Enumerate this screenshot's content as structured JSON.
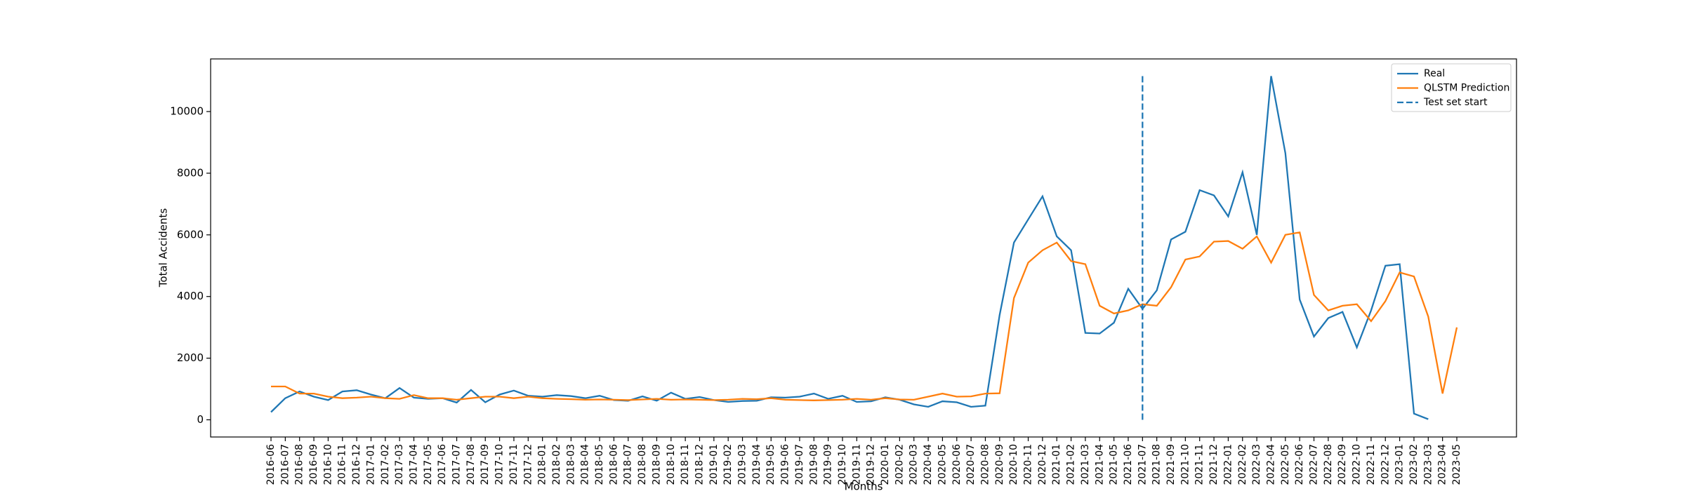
{
  "chart_data": {
    "type": "line",
    "x_label": "Months",
    "y_label": "Total Accidents",
    "categories": [
      "2016-06",
      "2016-07",
      "2016-08",
      "2016-09",
      "2016-10",
      "2016-11",
      "2016-12",
      "2017-01",
      "2017-02",
      "2017-03",
      "2017-04",
      "2017-05",
      "2017-06",
      "2017-07",
      "2017-08",
      "2017-09",
      "2017-10",
      "2017-11",
      "2017-12",
      "2018-01",
      "2018-02",
      "2018-03",
      "2018-04",
      "2018-05",
      "2018-06",
      "2018-07",
      "2018-08",
      "2018-09",
      "2018-10",
      "2018-11",
      "2018-12",
      "2019-01",
      "2019-02",
      "2019-03",
      "2019-04",
      "2019-05",
      "2019-06",
      "2019-07",
      "2019-08",
      "2019-09",
      "2019-10",
      "2019-11",
      "2019-12",
      "2020-01",
      "2020-02",
      "2020-03",
      "2020-04",
      "2020-05",
      "2020-06",
      "2020-07",
      "2020-08",
      "2020-09",
      "2020-10",
      "2020-11",
      "2020-12",
      "2021-01",
      "2021-02",
      "2021-03",
      "2021-04",
      "2021-05",
      "2021-06",
      "2021-07",
      "2021-08",
      "2021-09",
      "2021-10",
      "2021-11",
      "2021-12",
      "2022-01",
      "2022-02",
      "2022-03",
      "2022-04",
      "2022-05",
      "2022-06",
      "2022-07",
      "2022-08",
      "2022-09",
      "2022-10",
      "2022-11",
      "2022-12",
      "2023-01",
      "2023-02",
      "2023-03",
      "2023-04",
      "2023-05"
    ],
    "series": [
      {
        "name": "Real",
        "color": "#1f77b4",
        "values": [
          250,
          700,
          920,
          750,
          640,
          920,
          960,
          820,
          700,
          1030,
          720,
          680,
          700,
          560,
          970,
          570,
          820,
          950,
          780,
          750,
          800,
          770,
          700,
          780,
          640,
          620,
          760,
          620,
          880,
          680,
          740,
          640,
          580,
          610,
          620,
          730,
          720,
          750,
          850,
          680,
          780,
          580,
          600,
          730,
          650,
          500,
          420,
          600,
          570,
          420,
          460,
          3400,
          5750,
          6500,
          7250,
          5950,
          5500,
          2820,
          2800,
          3150,
          4250,
          3600,
          4200,
          5850,
          6100,
          7450,
          7280,
          6600,
          8030,
          6000,
          11150,
          8650,
          3900,
          2700,
          3300,
          3500,
          2350,
          3550,
          5000,
          5050,
          200,
          20,
          null,
          null
        ]
      },
      {
        "name": "QLSTM Prediction",
        "color": "#ff7f0e",
        "values": [
          1080,
          1080,
          850,
          850,
          750,
          700,
          720,
          750,
          700,
          680,
          800,
          700,
          700,
          650,
          700,
          750,
          750,
          700,
          750,
          700,
          680,
          670,
          650,
          660,
          650,
          640,
          660,
          680,
          650,
          660,
          650,
          640,
          650,
          680,
          670,
          700,
          650,
          640,
          630,
          640,
          650,
          680,
          650,
          700,
          660,
          650,
          750,
          850,
          750,
          760,
          850,
          860,
          3950,
          5100,
          5500,
          5750,
          5150,
          5050,
          3700,
          3450,
          3550,
          3750,
          3700,
          4300,
          5200,
          5300,
          5780,
          5800,
          5550,
          5950,
          5100,
          6000,
          6080,
          4050,
          3550,
          3700,
          3750,
          3200,
          3850,
          4780,
          4650,
          3350,
          850,
          3000
        ]
      }
    ],
    "vlines": [
      {
        "name": "Test set start",
        "x": "2021-07",
        "ymin": 0,
        "ymax": 11150,
        "color": "#1f77b4",
        "dashed": true
      }
    ],
    "ylim": [
      -557.5,
      11707.5
    ],
    "yticks": [
      0,
      2000,
      4000,
      6000,
      8000,
      10000
    ],
    "grid": false,
    "legend": "upper right"
  }
}
